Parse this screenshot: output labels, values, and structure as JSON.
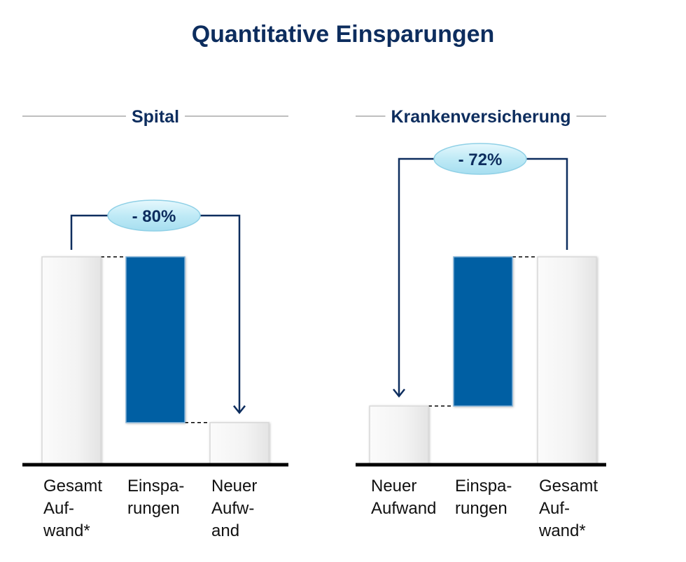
{
  "title": "Quantitative Einsparungen",
  "colors": {
    "title": "#0d2d5e",
    "savings_bar": "#005ea3",
    "total_bar": "#f4f4f4",
    "axis": "#000000",
    "bracket": "#0d2d5e",
    "rule": "#aaaaaa",
    "badge_fill": "#bfeaf6",
    "badge_stroke": "#8fd0e6"
  },
  "chart_data": [
    {
      "type": "bar",
      "subtype": "waterfall",
      "title": "Spital",
      "categories": [
        [
          "Gesamt",
          "Auf-",
          "wand*"
        ],
        [
          "Einspa-",
          "rungen"
        ],
        [
          "Neuer",
          "Aufw-",
          "and"
        ]
      ],
      "values": [
        100,
        80,
        20
      ],
      "roles": [
        "total",
        "decrease",
        "result"
      ],
      "change_label": "- 80%",
      "ylim": [
        0,
        100
      ]
    },
    {
      "type": "bar",
      "subtype": "waterfall",
      "title": "Krankenversicherung",
      "categories": [
        [
          "Neuer",
          "Aufwand"
        ],
        [
          "Einspa-",
          "rungen"
        ],
        [
          "Gesamt",
          "Auf-",
          "wand*"
        ]
      ],
      "values": [
        28,
        72,
        100
      ],
      "roles": [
        "result",
        "decrease",
        "total"
      ],
      "change_label": "- 72%",
      "ylim": [
        0,
        100
      ]
    }
  ]
}
